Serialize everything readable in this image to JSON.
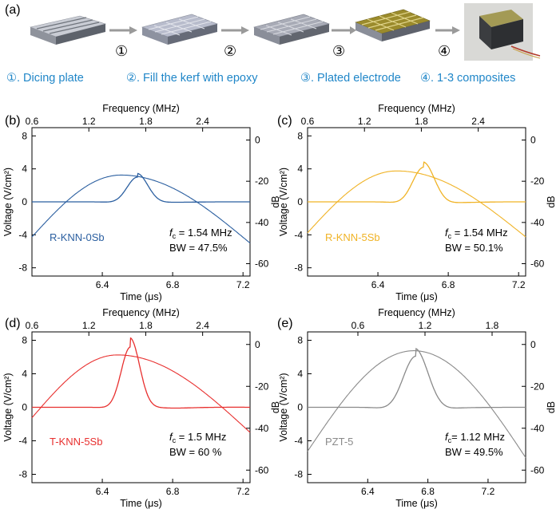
{
  "figure": {
    "panel_a_label": "(a)",
    "steps": [
      {
        "number": "①",
        "label": "①. Dicing plate"
      },
      {
        "number": "②",
        "label": "②. Fill the kerf with epoxy"
      },
      {
        "number": "③",
        "label": "③. Plated electrode"
      },
      {
        "number": "④",
        "label": "④. 1-3 composites"
      }
    ],
    "colors": {
      "step_text": "#1f86c8",
      "arrow": "#9a9a9a"
    }
  },
  "chart_data": [
    {
      "panel": "(b)",
      "type": "line",
      "name": "R-KNN-0Sb",
      "color": "#2b5fa0",
      "title_top": "Frequency (MHz)",
      "xlabel": "Time (μs)",
      "ylabel": "Voltage (V/cm²)",
      "ylabel_right": "dB",
      "xlim": [
        6.0,
        7.24
      ],
      "ylim": [
        -9,
        9
      ],
      "top_xlim": [
        0.6,
        2.9
      ],
      "right_ylim": [
        -66,
        6
      ],
      "x_ticks": [
        "6.4",
        "6.8",
        "7.2"
      ],
      "y_ticks": [
        "8",
        "4",
        "0",
        "-4",
        "-8"
      ],
      "top_ticks": [
        "0.6",
        "1.2",
        "1.8",
        "2.4"
      ],
      "right_ticks": [
        "0",
        "-20",
        "-40",
        "-60"
      ],
      "fc_label": "f",
      "fc_sub": "c",
      "fc_text": " = 1.54 MHz",
      "bw_text": "BW = 47.5%",
      "pulse": {
        "t0": 6.6,
        "f": 1.54,
        "sigma": 0.07,
        "amp": 3.0
      },
      "spectrum": {
        "f_peak": 1.54,
        "level_peak": -17,
        "edge_left_freq": 0.6,
        "edge_left_level": -47,
        "edge_right_freq": 2.9,
        "edge_right_level": -50
      }
    },
    {
      "panel": "(c)",
      "type": "line",
      "name": "R-KNN-5Sb",
      "color": "#f0b326",
      "title_top": "Frequency (MHz)",
      "xlabel": "Time (μs)",
      "ylabel": "Voltage (V/cm²)",
      "ylabel_right": "dB",
      "xlim": [
        6.0,
        7.24
      ],
      "ylim": [
        -9,
        9
      ],
      "top_xlim": [
        0.6,
        2.9
      ],
      "right_ylim": [
        -66,
        6
      ],
      "x_ticks": [
        "6.4",
        "6.8",
        "7.2"
      ],
      "y_ticks": [
        "8",
        "4",
        "0",
        "-4",
        "-8"
      ],
      "top_ticks": [
        "0.6",
        "1.2",
        "1.8",
        "2.4"
      ],
      "right_ticks": [
        "0",
        "-20",
        "-40",
        "-60"
      ],
      "fc_label": "f",
      "fc_sub": "c",
      "fc_text": " = 1.54 MHz",
      "bw_text": "BW = 50.1%",
      "pulse": {
        "t0": 6.66,
        "f": 1.54,
        "sigma": 0.075,
        "amp": 4.2
      },
      "spectrum": {
        "f_peak": 1.54,
        "level_peak": -15,
        "edge_left_freq": 0.6,
        "edge_left_level": -45,
        "edge_right_freq": 2.9,
        "edge_right_level": -47
      }
    },
    {
      "panel": "(d)",
      "type": "line",
      "name": "T-KNN-5Sb",
      "color": "#e8302f",
      "title_top": "Frequency (MHz)",
      "xlabel": "Time (μs)",
      "ylabel": "Voltage (V/cm²)",
      "ylabel_right": "dB",
      "xlim": [
        6.0,
        7.24
      ],
      "ylim": [
        -9,
        9
      ],
      "top_xlim": [
        0.6,
        2.9
      ],
      "right_ylim": [
        -66,
        6
      ],
      "x_ticks": [
        "6.4",
        "6.8",
        "7.2"
      ],
      "y_ticks": [
        "8",
        "4",
        "0",
        "-4",
        "-8"
      ],
      "top_ticks": [
        "0.6",
        "1.2",
        "1.8",
        "2.4"
      ],
      "right_ticks": [
        "0",
        "-20",
        "-40",
        "-60"
      ],
      "fc_label": "f",
      "fc_sub": "c",
      "fc_text": " = 1.5 MHz",
      "bw_text": "BW = 60 %",
      "pulse": {
        "t0": 6.56,
        "f": 1.5,
        "sigma": 0.06,
        "amp": 7.2
      },
      "spectrum": {
        "f_peak": 1.5,
        "level_peak": -5,
        "edge_left_freq": 0.6,
        "edge_left_level": -35,
        "edge_right_freq": 2.9,
        "edge_right_level": -42
      }
    },
    {
      "panel": "(e)",
      "type": "line",
      "name": "PZT-5",
      "color": "#8a8a8a",
      "title_top": "Frequency (MHz)",
      "xlabel": "Time (μs)",
      "ylabel": "Voltage (V/cm²)",
      "ylabel_right": "dB",
      "xlim": [
        6.0,
        7.45
      ],
      "ylim": [
        -9,
        9
      ],
      "top_xlim": [
        0.15,
        2.1
      ],
      "right_ylim": [
        -66,
        6
      ],
      "x_ticks": [
        "6.4",
        "6.8",
        "7.2"
      ],
      "y_ticks": [
        "8",
        "4",
        "0",
        "-4",
        "-8"
      ],
      "top_ticks": [
        "0.6",
        "1.2",
        "1.8"
      ],
      "right_ticks": [
        "0",
        "-20",
        "-40",
        "-60"
      ],
      "fc_label": "f",
      "fc_sub": "c",
      "fc_text": "= 1.12 MHz",
      "bw_text": "BW = 49.5%",
      "pulse": {
        "t0": 6.72,
        "f": 1.12,
        "sigma": 0.1,
        "amp": 6.1
      },
      "spectrum": {
        "f_peak": 1.1,
        "level_peak": -3,
        "edge_left_freq": 0.15,
        "edge_left_level": -51,
        "edge_right_freq": 2.1,
        "edge_right_level": -54
      }
    }
  ]
}
